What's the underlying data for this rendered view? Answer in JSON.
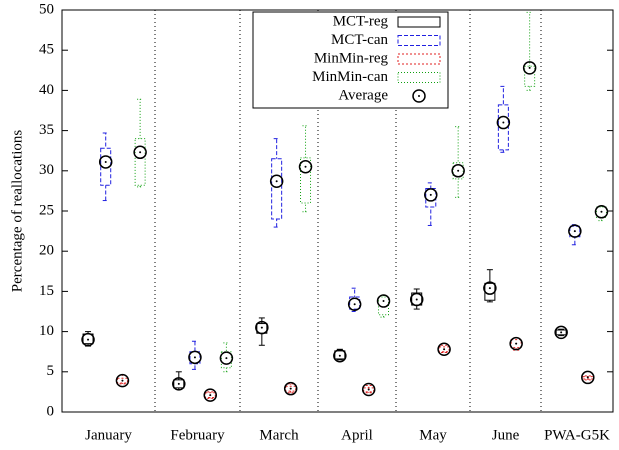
{
  "chart_data": {
    "type": "box",
    "y_label": "Percentage of reallocations",
    "categories": [
      "January",
      "February",
      "March",
      "April",
      "May",
      "June",
      "PWA-G5K"
    ],
    "ylim": [
      0,
      50
    ],
    "yticks": [
      0,
      5,
      10,
      15,
      20,
      25,
      30,
      35,
      40,
      45,
      50
    ],
    "legend": "top-center",
    "average_label": "Average",
    "series": [
      {
        "name": "MCT-reg",
        "color": "#000000",
        "dash": "none",
        "low": [
          8.2,
          2.8,
          8.3,
          6.5,
          12.8,
          13.7,
          9.5
        ],
        "q1": [
          8.5,
          3,
          9.8,
          6.6,
          13.3,
          13.9,
          9.6
        ],
        "q3": [
          9.7,
          4,
          11,
          7.6,
          14.8,
          16,
          10.2
        ],
        "high": [
          10,
          5,
          11.7,
          7.8,
          15.3,
          17.7,
          10.3
        ],
        "mean": [
          9,
          3.5,
          10.5,
          7,
          14,
          15.4,
          9.9
        ]
      },
      {
        "name": "MCT-can",
        "color": "#2020e0",
        "dash": "4,2",
        "low": [
          26.3,
          5.3,
          23,
          12.5,
          23.2,
          32.3,
          20.8
        ],
        "q1": [
          28.2,
          6,
          24,
          12.8,
          25.5,
          32.6,
          21.8
        ],
        "q3": [
          32.8,
          7.5,
          31.5,
          14.3,
          27.8,
          38.2,
          23.1
        ],
        "high": [
          34.7,
          8.8,
          34,
          15.4,
          28.5,
          40.5,
          23.3
        ],
        "mean": [
          31.1,
          6.8,
          28.7,
          13.4,
          27,
          36,
          22.5
        ]
      },
      {
        "name": "MinMin-reg",
        "color": "#e02020",
        "dash": "2,2",
        "low": [
          3.5,
          1.7,
          2.4,
          2.4,
          7.4,
          7.7,
          4
        ],
        "q1": [
          3.6,
          1.8,
          2.6,
          2.5,
          7.5,
          8,
          4.1
        ],
        "q3": [
          4.2,
          2.4,
          3.2,
          3,
          8.1,
          9,
          4.4
        ],
        "high": [
          4.6,
          2.5,
          3.5,
          3.3,
          8.3,
          9.2,
          4.5
        ],
        "mean": [
          3.9,
          2.1,
          2.9,
          2.8,
          7.8,
          8.5,
          4.3
        ]
      },
      {
        "name": "MinMin-can",
        "color": "#10a010",
        "dash": "1,2",
        "low": [
          28,
          5,
          24.9,
          11.8,
          26.7,
          40,
          23.8
        ],
        "q1": [
          28.2,
          5.5,
          26,
          12.1,
          29,
          40.5,
          24.2
        ],
        "q3": [
          34,
          7.5,
          31.6,
          14.3,
          31,
          43,
          25.5
        ],
        "high": [
          38.9,
          8.6,
          35.6,
          14.5,
          35.5,
          49.7,
          25.5
        ],
        "mean": [
          32.3,
          6.7,
          30.5,
          13.8,
          30,
          42.8,
          24.9
        ]
      }
    ]
  }
}
